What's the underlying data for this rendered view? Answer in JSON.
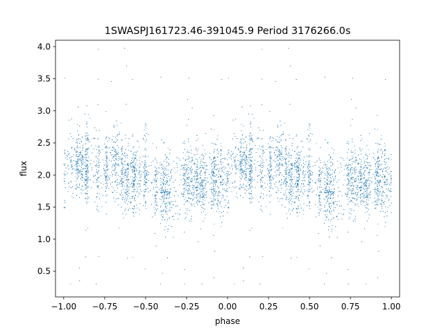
{
  "chart_data": {
    "type": "scatter",
    "title": "1SWASPJ161723.46-391045.9 Period 3176266.0s",
    "xlabel": "phase",
    "ylabel": "flux",
    "xlim": [
      -1.05,
      1.05
    ],
    "ylim": [
      0.1,
      4.1
    ],
    "x_ticks": [
      -1.0,
      -0.75,
      -0.5,
      -0.25,
      0.0,
      0.25,
      0.5,
      0.75,
      1.0
    ],
    "x_tick_labels": [
      "−1.00",
      "−0.75",
      "−0.50",
      "−0.25",
      "0.00",
      "0.25",
      "0.50",
      "0.75",
      "1.00"
    ],
    "y_ticks": [
      0.5,
      1.0,
      1.5,
      2.0,
      2.5,
      3.0,
      3.5,
      4.0
    ],
    "y_tick_labels": [
      "0.5",
      "1.0",
      "1.5",
      "2.0",
      "2.5",
      "3.0",
      "3.5",
      "4.0"
    ],
    "grid": false,
    "marker_color": "#1f77b4",
    "marker": "small dot",
    "point_count_approx": 9000,
    "phase_range": [
      -1.0,
      1.0
    ],
    "flux_range": [
      0.3,
      4.0
    ],
    "typical_flux": 2.0,
    "folded": "phase curve repeats once per unit phase (points from 0 to 1 duplicated at -1 to 0)",
    "flux_profile_per_phase": [
      {
        "phase": 0.0,
        "median": 1.9,
        "spread": 0.25
      },
      {
        "phase": 0.05,
        "median": 2.15,
        "spread": 0.3
      },
      {
        "phase": 0.1,
        "median": 2.2,
        "spread": 0.28
      },
      {
        "phase": 0.15,
        "median": 2.1,
        "spread": 0.3
      },
      {
        "phase": 0.2,
        "median": 2.15,
        "spread": 0.3
      },
      {
        "phase": 0.25,
        "median": 2.0,
        "spread": 0.25
      },
      {
        "phase": 0.3,
        "median": 2.2,
        "spread": 0.3
      },
      {
        "phase": 0.35,
        "median": 2.05,
        "spread": 0.28
      },
      {
        "phase": 0.4,
        "median": 1.95,
        "spread": 0.25
      },
      {
        "phase": 0.45,
        "median": 1.95,
        "spread": 0.25
      },
      {
        "phase": 0.5,
        "median": 2.0,
        "spread": 0.28
      },
      {
        "phase": 0.55,
        "median": 1.85,
        "spread": 0.25
      },
      {
        "phase": 0.6,
        "median": 1.8,
        "spread": 0.25
      },
      {
        "phase": 0.65,
        "median": 1.75,
        "spread": 0.35
      },
      {
        "phase": 0.7,
        "median": 1.85,
        "spread": 0.3
      },
      {
        "phase": 0.75,
        "median": 1.85,
        "spread": 0.28
      },
      {
        "phase": 0.8,
        "median": 2.0,
        "spread": 0.25
      },
      {
        "phase": 0.85,
        "median": 1.9,
        "spread": 0.25
      },
      {
        "phase": 0.9,
        "median": 1.95,
        "spread": 0.28
      },
      {
        "phase": 0.95,
        "median": 1.95,
        "spread": 0.3
      }
    ]
  }
}
